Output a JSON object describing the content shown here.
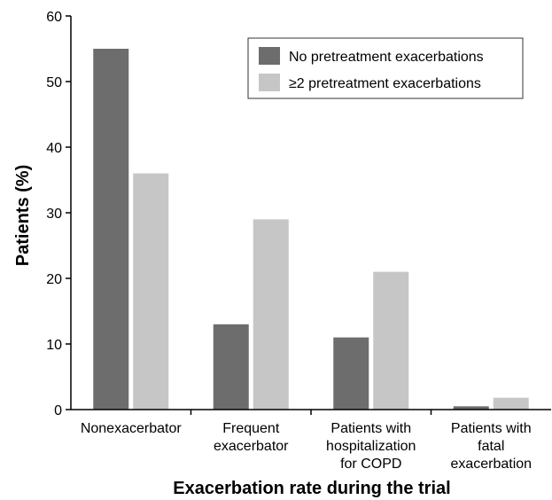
{
  "chart_data": {
    "type": "bar",
    "title": "",
    "xlabel": "Exacerbation rate during the trial",
    "ylabel": "Patients (%)",
    "ylim": [
      0,
      60
    ],
    "yticks": [
      "0",
      "10",
      "20",
      "30",
      "40",
      "50",
      "60"
    ],
    "categories": [
      [
        "Nonexacerbator"
      ],
      [
        "Frequent",
        "exacerbator"
      ],
      [
        "Patients with",
        "hospitalization",
        "for COPD"
      ],
      [
        "Patients with",
        "fatal",
        "exacerbation"
      ]
    ],
    "series": [
      {
        "name": "No pretreatment exacerbations",
        "color": "#6d6d6d",
        "values": [
          55,
          13,
          11,
          0.5
        ]
      },
      {
        "name": "≥2 pretreatment exacerbations",
        "color": "#c6c6c6",
        "values": [
          36,
          29,
          21,
          1.8
        ]
      }
    ],
    "grid": false,
    "legend_position": "top-right"
  }
}
